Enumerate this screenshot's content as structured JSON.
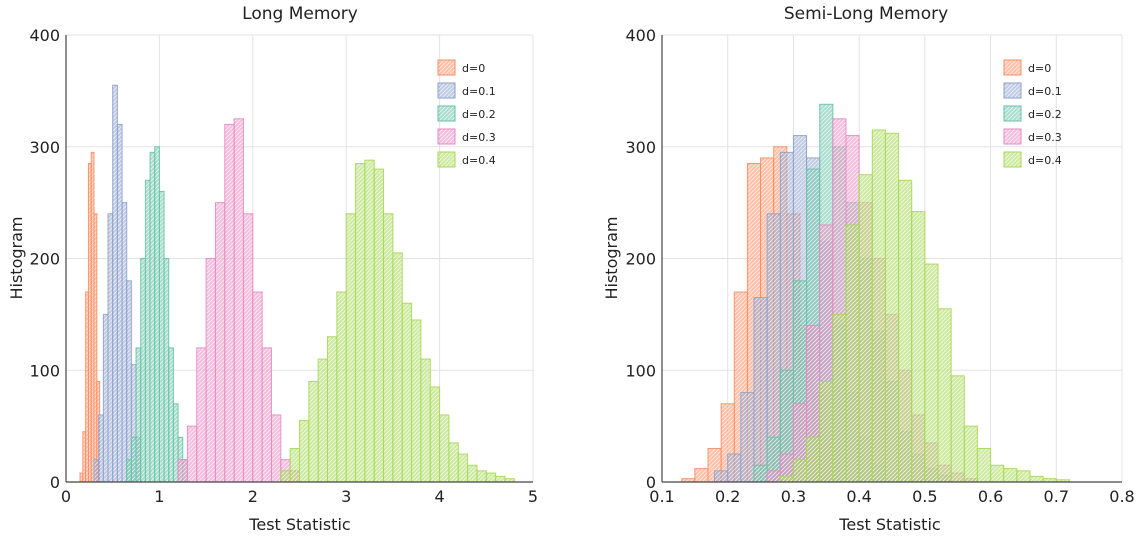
{
  "colors": {
    "d=0": "#fc8d62",
    "d=0.1": "#8da0cb",
    "d=0.2": "#66c2a5",
    "d=0.3": "#e78ac3",
    "d=0.4": "#a6d854"
  },
  "chart_data": [
    {
      "type": "bar",
      "title": "Long Memory",
      "xlabel": "Test Statistic",
      "ylabel": "Histogram",
      "xlim": [
        0,
        5
      ],
      "ylim": [
        0,
        400
      ],
      "xticks": [
        "0",
        "1",
        "2",
        "3",
        "4",
        "5"
      ],
      "yticks": [
        "0",
        "100",
        "200",
        "300",
        "400"
      ],
      "grid": true,
      "legend_position": "top-right",
      "series": [
        {
          "name": "d=0",
          "bin_edges": [
            0.15,
            0.18,
            0.21,
            0.24,
            0.27,
            0.3,
            0.33,
            0.36
          ],
          "counts": [
            8,
            45,
            170,
            285,
            295,
            240,
            90
          ]
        },
        {
          "name": "d=0.1",
          "bin_edges": [
            0.3,
            0.35,
            0.4,
            0.45,
            0.5,
            0.55,
            0.6,
            0.65,
            0.7,
            0.75,
            0.8
          ],
          "counts": [
            20,
            60,
            150,
            240,
            355,
            320,
            250,
            180,
            105,
            40
          ]
        },
        {
          "name": "d=0.2",
          "bin_edges": [
            0.65,
            0.7,
            0.75,
            0.8,
            0.85,
            0.9,
            0.95,
            1.0,
            1.05,
            1.1,
            1.15,
            1.2,
            1.25,
            1.3
          ],
          "counts": [
            20,
            40,
            120,
            200,
            270,
            295,
            300,
            260,
            200,
            120,
            70,
            40,
            20
          ]
        },
        {
          "name": "d=0.3",
          "bin_edges": [
            1.2,
            1.3,
            1.4,
            1.5,
            1.6,
            1.7,
            1.8,
            1.9,
            2.0,
            2.1,
            2.2,
            2.3,
            2.4,
            2.5
          ],
          "counts": [
            20,
            50,
            120,
            200,
            250,
            320,
            325,
            240,
            170,
            120,
            60,
            20,
            10
          ]
        },
        {
          "name": "d=0.4",
          "bin_edges": [
            2.3,
            2.4,
            2.5,
            2.6,
            2.7,
            2.8,
            2.9,
            3.0,
            3.1,
            3.2,
            3.3,
            3.4,
            3.5,
            3.6,
            3.7,
            3.8,
            3.9,
            4.0,
            4.1,
            4.2,
            4.3,
            4.4,
            4.5,
            4.6,
            4.7,
            4.8
          ],
          "counts": [
            10,
            30,
            55,
            90,
            110,
            130,
            170,
            240,
            285,
            288,
            280,
            240,
            205,
            160,
            145,
            110,
            85,
            60,
            35,
            25,
            15,
            10,
            8,
            5,
            3
          ]
        }
      ]
    },
    {
      "type": "bar",
      "title": "Semi-Long Memory",
      "xlabel": "Test Statistic",
      "ylabel": "Histogram",
      "xlim": [
        0.1,
        0.8
      ],
      "ylim": [
        0,
        400
      ],
      "xticks": [
        "0.1",
        "0.2",
        "0.3",
        "0.4",
        "0.5",
        "0.6",
        "0.7",
        "0.8"
      ],
      "yticks": [
        "0",
        "100",
        "200",
        "300",
        "400"
      ],
      "grid": true,
      "legend_position": "top-right",
      "series": [
        {
          "name": "d=0",
          "bin_edges": [
            0.13,
            0.15,
            0.17,
            0.19,
            0.21,
            0.23,
            0.25,
            0.27,
            0.29,
            0.31,
            0.33,
            0.35,
            0.37
          ],
          "counts": [
            3,
            12,
            30,
            70,
            170,
            285,
            290,
            300,
            240,
            140,
            80,
            35,
            10
          ]
        },
        {
          "name": "d=0.1",
          "bin_edges": [
            0.18,
            0.2,
            0.22,
            0.24,
            0.26,
            0.28,
            0.3,
            0.32,
            0.34,
            0.36,
            0.38,
            0.4,
            0.42,
            0.44
          ],
          "counts": [
            10,
            25,
            80,
            165,
            240,
            295,
            310,
            290,
            215,
            140,
            80,
            40,
            15
          ]
        },
        {
          "name": "d=0.2",
          "bin_edges": [
            0.24,
            0.26,
            0.28,
            0.3,
            0.32,
            0.34,
            0.36,
            0.38,
            0.4,
            0.42,
            0.44,
            0.46,
            0.48,
            0.5,
            0.52,
            0.54
          ],
          "counts": [
            15,
            40,
            100,
            180,
            280,
            338,
            300,
            250,
            200,
            135,
            90,
            45,
            25,
            12,
            6
          ]
        },
        {
          "name": "d=0.3",
          "bin_edges": [
            0.26,
            0.28,
            0.3,
            0.32,
            0.34,
            0.36,
            0.38,
            0.4,
            0.42,
            0.44,
            0.46,
            0.48,
            0.5,
            0.52,
            0.54,
            0.56,
            0.58
          ],
          "counts": [
            10,
            25,
            70,
            140,
            230,
            325,
            310,
            250,
            200,
            150,
            100,
            60,
            35,
            15,
            8,
            3
          ]
        },
        {
          "name": "d=0.4",
          "bin_edges": [
            0.28,
            0.3,
            0.32,
            0.34,
            0.36,
            0.38,
            0.4,
            0.42,
            0.44,
            0.46,
            0.48,
            0.5,
            0.52,
            0.54,
            0.56,
            0.58,
            0.6,
            0.62,
            0.64,
            0.66,
            0.68,
            0.7,
            0.72
          ],
          "counts": [
            5,
            20,
            40,
            90,
            150,
            230,
            275,
            315,
            312,
            270,
            242,
            195,
            155,
            95,
            50,
            30,
            15,
            12,
            10,
            5,
            3,
            2
          ]
        }
      ]
    }
  ]
}
